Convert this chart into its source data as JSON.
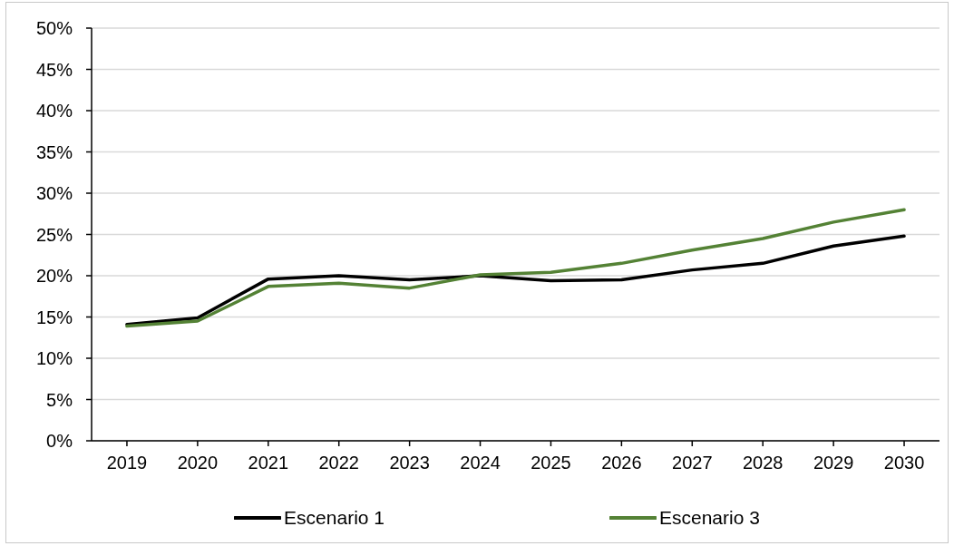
{
  "chart_data": {
    "type": "line",
    "categories": [
      "2019",
      "2020",
      "2021",
      "2022",
      "2023",
      "2024",
      "2025",
      "2026",
      "2027",
      "2028",
      "2029",
      "2030"
    ],
    "series": [
      {
        "name": "Escenario 1",
        "color": "#000000",
        "values": [
          14.1,
          14.9,
          19.6,
          20.0,
          19.5,
          20.0,
          19.4,
          19.5,
          20.7,
          21.5,
          23.6,
          24.8
        ]
      },
      {
        "name": "Escenario 3",
        "color": "#548235",
        "values": [
          13.9,
          14.5,
          18.7,
          19.1,
          18.5,
          20.1,
          20.4,
          21.5,
          23.1,
          24.5,
          26.5,
          28.0
        ]
      }
    ],
    "ylim": [
      0,
      50
    ],
    "yticks": [
      {
        "value": 0,
        "label": "0%"
      },
      {
        "value": 5,
        "label": "5%"
      },
      {
        "value": 10,
        "label": "10%"
      },
      {
        "value": 15,
        "label": "15%"
      },
      {
        "value": 20,
        "label": "20%"
      },
      {
        "value": 25,
        "label": "25%"
      },
      {
        "value": 30,
        "label": "30%"
      },
      {
        "value": 35,
        "label": "35%"
      },
      {
        "value": 40,
        "label": "40%"
      },
      {
        "value": 45,
        "label": "45%"
      },
      {
        "value": 50,
        "label": "50%"
      }
    ],
    "grid": "y",
    "legend": "bottom",
    "marker": "none",
    "line_style": "solid"
  }
}
